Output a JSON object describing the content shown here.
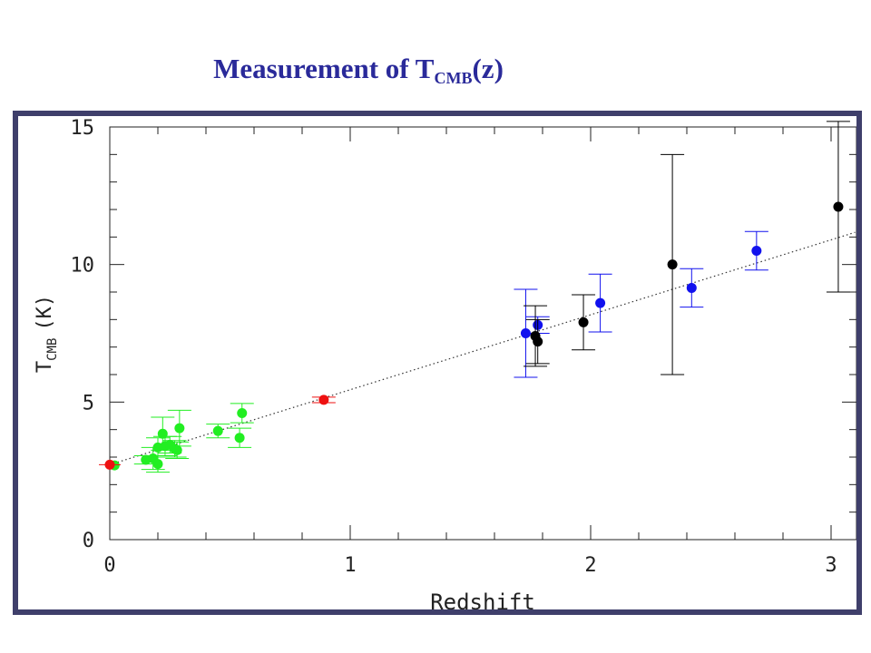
{
  "slide": {
    "title_main": "Measurement of T",
    "title_sub": "CMB",
    "title_tail": "(z)"
  },
  "colors": {
    "frame": "#3f3f6b",
    "title": "#2a2a9a",
    "green": "#22ee22",
    "red": "#ee1111",
    "blue": "#1111ee",
    "black": "#000000"
  },
  "chart_data": {
    "type": "scatter",
    "xlabel": "Redshift",
    "ylabel_main": "T",
    "ylabel_sub": "CMB",
    "ylabel_unit": "(K)",
    "xlim": [
      0,
      3.1
    ],
    "ylim": [
      0,
      15
    ],
    "xticks": [
      "0",
      "1",
      "2",
      "3"
    ],
    "yticks": [
      "0",
      "5",
      "10",
      "15"
    ],
    "grid": false,
    "fit_line": {
      "style": "dotted",
      "x0": 0,
      "y0": 2.725,
      "x1": 3.1,
      "y1": 11.17
    },
    "series": [
      {
        "color": "green",
        "points": [
          {
            "x": 0.02,
            "y": 2.7,
            "err": 0.0
          },
          {
            "x": 0.15,
            "y": 2.9,
            "err": 0.15
          },
          {
            "x": 0.18,
            "y": 2.95,
            "err": 0.4
          },
          {
            "x": 0.2,
            "y": 2.75,
            "err": 0.3
          },
          {
            "x": 0.2,
            "y": 3.35,
            "err": 0.35
          },
          {
            "x": 0.22,
            "y": 3.85,
            "err": 0.6
          },
          {
            "x": 0.23,
            "y": 3.4,
            "err": 0.35
          },
          {
            "x": 0.25,
            "y": 3.45,
            "err": 0.3
          },
          {
            "x": 0.27,
            "y": 3.3,
            "err": 0.3
          },
          {
            "x": 0.28,
            "y": 3.25,
            "err": 0.3
          },
          {
            "x": 0.29,
            "y": 4.05,
            "err": 0.65
          },
          {
            "x": 0.45,
            "y": 3.95,
            "err": 0.25
          },
          {
            "x": 0.54,
            "y": 3.7,
            "err": 0.35
          },
          {
            "x": 0.55,
            "y": 4.6,
            "err": 0.35
          }
        ]
      },
      {
        "color": "red",
        "points": [
          {
            "x": 0.0,
            "y": 2.725,
            "err": 0.0
          },
          {
            "x": 0.89,
            "y": 5.08,
            "err": 0.1
          }
        ]
      },
      {
        "color": "blue",
        "points": [
          {
            "x": 1.73,
            "y": 7.5,
            "err": 1.6
          },
          {
            "x": 1.78,
            "y": 7.8,
            "err": 0.3
          },
          {
            "x": 2.04,
            "y": 8.6,
            "err": 1.05
          },
          {
            "x": 2.42,
            "y": 9.15,
            "err": 0.7
          },
          {
            "x": 2.69,
            "y": 10.5,
            "err": 0.7
          }
        ]
      },
      {
        "color": "black",
        "points": [
          {
            "x": 1.77,
            "y": 7.4,
            "err": 1.1
          },
          {
            "x": 1.78,
            "y": 7.2,
            "err": 0.8
          },
          {
            "x": 1.97,
            "y": 7.9,
            "err": 1.0
          },
          {
            "x": 2.34,
            "y": 10.0,
            "err": 4.0
          },
          {
            "x": 3.03,
            "y": 12.1,
            "err": 3.1
          }
        ]
      }
    ]
  }
}
